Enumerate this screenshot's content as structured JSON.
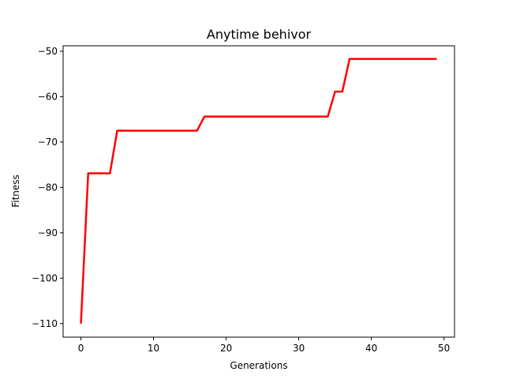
{
  "chart_data": {
    "type": "line",
    "title": "Anytime behivor",
    "xlabel": "Generations",
    "ylabel": "Fitness",
    "xlim": [
      -2.45,
      51.45
    ],
    "ylim": [
      -113.0,
      -48.8
    ],
    "x_ticks": [
      0,
      10,
      20,
      30,
      40,
      50
    ],
    "y_ticks": [
      -110,
      -100,
      -90,
      -80,
      -70,
      -60,
      -50
    ],
    "x_tick_labels": [
      "0",
      "10",
      "20",
      "30",
      "40",
      "50"
    ],
    "y_tick_labels": [
      "−110",
      "−100",
      "−90",
      "−80",
      "−70",
      "−60",
      "−50"
    ],
    "grid": false,
    "legend": "none",
    "series": [
      {
        "color": "#ff0000",
        "x": [
          0,
          1,
          2,
          3,
          4,
          5,
          6,
          7,
          8,
          9,
          10,
          11,
          12,
          13,
          14,
          15,
          16,
          17,
          18,
          19,
          20,
          21,
          22,
          23,
          24,
          25,
          26,
          27,
          28,
          29,
          30,
          31,
          32,
          33,
          34,
          35,
          36,
          37,
          38,
          39,
          40,
          41,
          42,
          43,
          44,
          45,
          46,
          47,
          48,
          49
        ],
        "y": [
          -110,
          -76.9,
          -76.9,
          -76.9,
          -76.9,
          -67.5,
          -67.5,
          -67.5,
          -67.5,
          -67.5,
          -67.5,
          -67.5,
          -67.5,
          -67.5,
          -67.5,
          -67.5,
          -67.5,
          -64.4,
          -64.4,
          -64.4,
          -64.4,
          -64.4,
          -64.4,
          -64.4,
          -64.4,
          -64.4,
          -64.4,
          -64.4,
          -64.4,
          -64.4,
          -64.4,
          -64.4,
          -64.4,
          -64.4,
          -64.4,
          -58.9,
          -58.9,
          -51.7,
          -51.7,
          -51.7,
          -51.7,
          -51.7,
          -51.7,
          -51.7,
          -51.7,
          -51.7,
          -51.7,
          -51.7,
          -51.7,
          -51.7
        ]
      }
    ]
  }
}
